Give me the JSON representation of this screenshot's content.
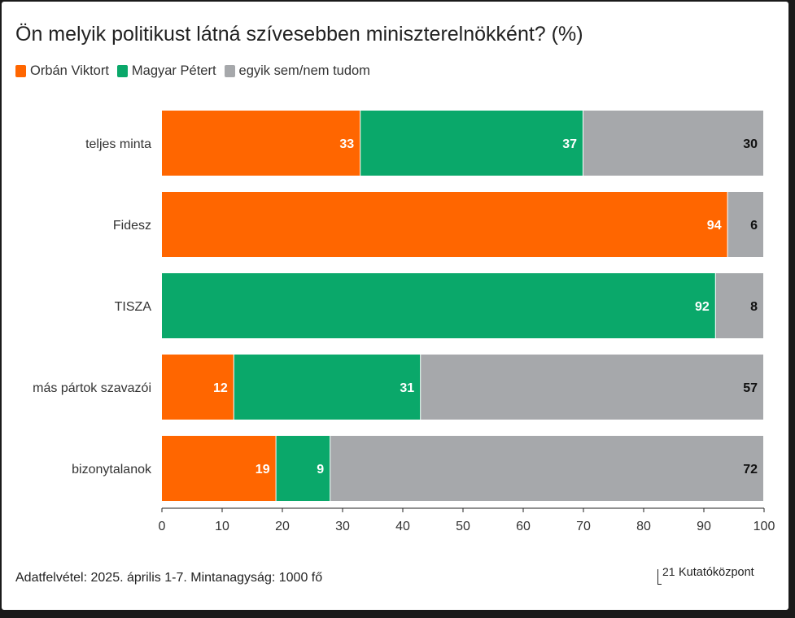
{
  "title": "Ön melyik politikust látná szívesebben miniszterelnökként? (%)",
  "legend": [
    {
      "label": "Orbán Viktort",
      "color": "#ff6600"
    },
    {
      "label": "Magyar Pétert",
      "color": "#0aa86a"
    },
    {
      "label": "egyik sem/nem tudom",
      "color": "#a6a8ab"
    }
  ],
  "footer": {
    "note": "Adatfelvétel: 2025. április 1-7. Mintanagyság: 1000 fő",
    "brand_number": "21",
    "brand_name": "Kutatóközpont"
  },
  "chart_data": {
    "type": "bar",
    "orientation": "horizontal",
    "stacked": true,
    "title": "Ön melyik politikust látná szívesebben miniszterelnökként? (%)",
    "categories": [
      "teljes minta",
      "Fidesz",
      "TISZA",
      "más pártok szavazói",
      "bizonytalanok"
    ],
    "series": [
      {
        "name": "Orbán Viktort",
        "color": "#ff6600",
        "values": [
          33,
          94,
          0,
          12,
          19
        ]
      },
      {
        "name": "Magyar Pétert",
        "color": "#0aa86a",
        "values": [
          37,
          0,
          92,
          31,
          9
        ]
      },
      {
        "name": "egyik sem/nem tudom",
        "color": "#a6a8ab",
        "values": [
          30,
          6,
          8,
          57,
          72
        ]
      }
    ],
    "xlim": [
      0,
      100
    ],
    "xticks": [
      0,
      10,
      20,
      30,
      40,
      50,
      60,
      70,
      80,
      90,
      100
    ],
    "label_colors": [
      "#ffffff",
      "#ffffff",
      "#111111"
    ]
  }
}
